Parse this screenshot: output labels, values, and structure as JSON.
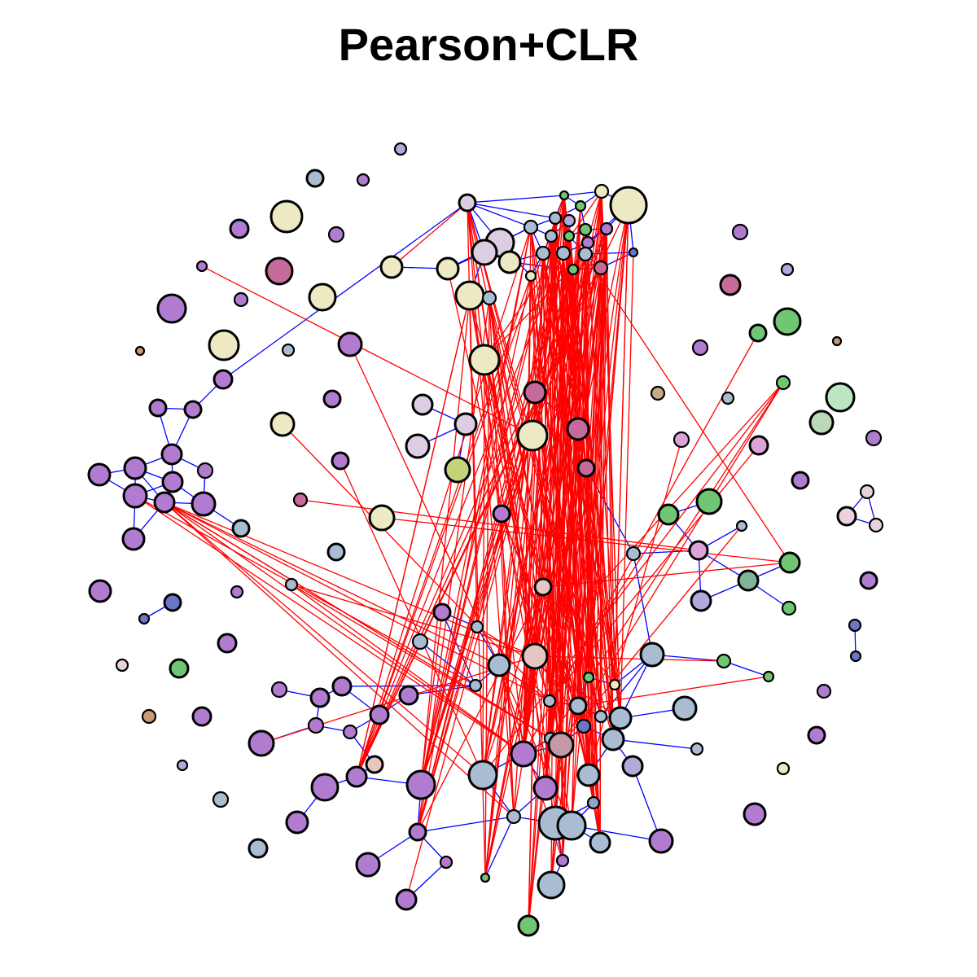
{
  "title": "Pearson+CLR",
  "colors": {
    "edge_positive": "#0000ff",
    "edge_negative": "#ff0000",
    "node_stroke": "#000000",
    "palette": {
      "purple": "#b17cd0",
      "steel": "#a9bcd1",
      "cream": "#ede9c3",
      "magenta": "#c56a9a",
      "lilac": "#dccde2",
      "green": "#71c674",
      "mint": "#bce5c3",
      "rose": "#e6c6c0",
      "navy": "#6b77c4",
      "lavender": "#b3a9dc",
      "teal": "#7fb39a",
      "olive": "#c4d27a",
      "brown": "#c99a76",
      "tan": "#c4ad84",
      "pink": "#dca4d6",
      "mauve": "#c49aa6",
      "slate": "#8ea5c9",
      "blush": "#e9d1de",
      "sage": "#b9d9b8"
    }
  }
}
